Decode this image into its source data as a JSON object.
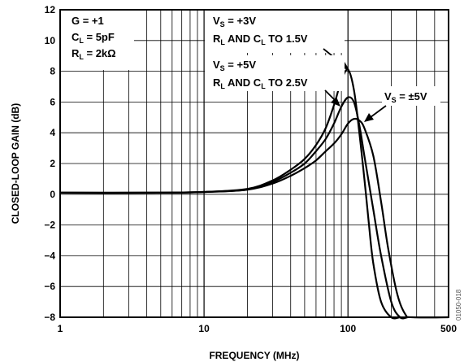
{
  "chart_data": {
    "type": "line",
    "xlabel": "FREQUENCY (MHz)",
    "ylabel": "CLOSED-LOOP GAIN (dB)",
    "x_scale": "log",
    "xlim": [
      1,
      500
    ],
    "ylim": [
      -8,
      12
    ],
    "x_tick_labels": [
      {
        "value": 1,
        "label": "1"
      },
      {
        "value": 10,
        "label": "10"
      },
      {
        "value": 100,
        "label": "100"
      },
      {
        "value": 500,
        "label": "500"
      }
    ],
    "y_ticks": [
      12,
      10,
      8,
      6,
      4,
      2,
      0,
      -2,
      -4,
      -6,
      -8
    ],
    "y_tick_labels": [
      "12",
      "10",
      "8",
      "6",
      "4",
      "2",
      "0",
      "−2",
      "−4",
      "−6",
      "−8"
    ],
    "grid": true,
    "conditions": [
      "G = +1",
      "C_L = 5pF",
      "R_L = 2kΩ"
    ],
    "series": [
      {
        "name": "V_S = +3V, R_L AND C_L TO 1.5V",
        "x": [
          1,
          5,
          10,
          20,
          30,
          40,
          50,
          60,
          70,
          80,
          90,
          100,
          110,
          120,
          130,
          140,
          150,
          170,
          200,
          230
        ],
        "y": [
          0.1,
          0.1,
          0.15,
          0.35,
          0.9,
          1.6,
          2.3,
          3.2,
          4.3,
          5.8,
          7.4,
          8.1,
          6.8,
          4.0,
          1.0,
          -2.0,
          -4.5,
          -7.0,
          -8.0,
          -8.0
        ]
      },
      {
        "name": "V_S = +5V, R_L AND C_L TO 2.5V",
        "x": [
          1,
          5,
          10,
          20,
          30,
          40,
          50,
          60,
          70,
          80,
          90,
          100,
          110,
          120,
          130,
          150,
          170,
          200,
          230,
          260
        ],
        "y": [
          0.1,
          0.1,
          0.15,
          0.3,
          0.8,
          1.4,
          2.0,
          2.8,
          3.6,
          4.6,
          5.7,
          6.3,
          6.0,
          4.5,
          2.5,
          -1.0,
          -4.0,
          -7.0,
          -8.0,
          -8.0
        ]
      },
      {
        "name": "V_S = ±5V",
        "x": [
          1,
          5,
          10,
          20,
          30,
          40,
          50,
          60,
          70,
          80,
          90,
          100,
          110,
          120,
          130,
          150,
          170,
          190,
          220,
          250,
          280,
          500
        ],
        "y": [
          0.1,
          0.1,
          0.15,
          0.3,
          0.7,
          1.2,
          1.7,
          2.2,
          2.8,
          3.3,
          3.9,
          4.6,
          4.9,
          4.8,
          4.3,
          2.5,
          -0.5,
          -3.5,
          -6.5,
          -7.8,
          -8.0,
          -8.0
        ]
      }
    ],
    "annotations": [
      {
        "lines": [
          "V_S = +3V",
          "R_L AND C_L TO 1.5V"
        ]
      },
      {
        "lines": [
          "V_S = +5V",
          "R_L AND C_L TO 2.5V"
        ]
      },
      {
        "lines": [
          "V_S = ±5V"
        ]
      }
    ],
    "figure_code": "01050-018"
  }
}
